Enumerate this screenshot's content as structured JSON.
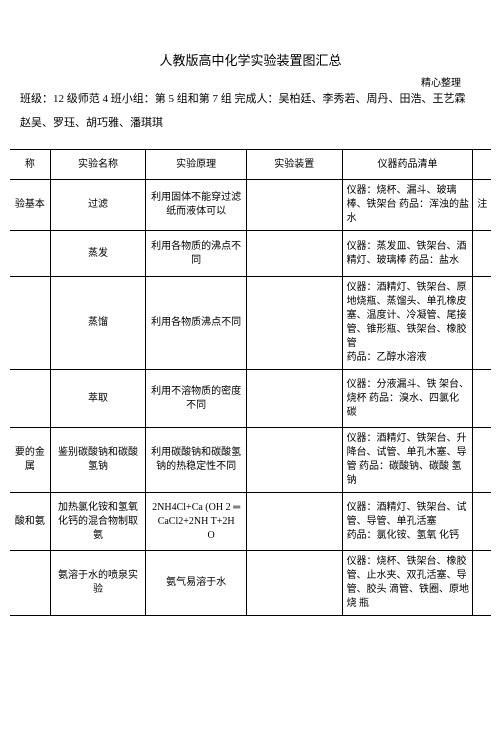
{
  "header_right": "精心整理",
  "title": "人教版高中化学实验装置图汇总",
  "class_info_line1": "班级：12 级师范 4 班小组：第 5 组和第 7 组 完成人：吴柏廷、李秀若、周丹、田浩、王艺霖",
  "class_info_line2": "赵吴、罗珏、胡巧雅、潘琪琪",
  "headers": {
    "col0": "称",
    "col1": "实验名称",
    "col2": "实验原理",
    "col3": "实验装置",
    "col4": "仪器药品清单",
    "col5": ""
  },
  "rows": [
    {
      "cat": "验基本",
      "name": "过滤",
      "principle": "利用固体不能穿过滤纸而液体可以",
      "apparatus": "",
      "list": "仪器：烧杯、漏斗、玻璃棒、铁架台 药品：浑浊的盐水",
      "note": "注",
      "row_h": "h-med"
    },
    {
      "cat": "",
      "name": "蒸发",
      "principle": "利用各物质的沸点不同",
      "apparatus": "",
      "list": "仪器：蒸发皿、铁架台、酒精灯、玻璃棒 药品：盐水",
      "note": "",
      "row_h": "h-med"
    },
    {
      "cat": "",
      "name": "蒸馏",
      "principle": "利用各物质沸点不同",
      "apparatus": "",
      "list": "仪器：酒精灯、铁架台、原地烧瓶、蒸馏头、单孔橡皮塞、温度计、冷凝管、尾接管、锥形瓶、铁架台、橡胶管\n药品：乙醇水溶液",
      "note": "",
      "row_h": "h-taller"
    },
    {
      "cat": "",
      "name": "萃取",
      "principle": "利用不溶物质的密度不同",
      "apparatus": "",
      "list": "仪器：分液漏斗、铁 架台、烧杯 药品：溴水、四氯化 碳",
      "note": "",
      "row_h": "h-tall"
    },
    {
      "cat": "要的金属",
      "name": "鉴别碳酸钠和碳酸氢钠",
      "principle": "利用碳酸钠和碳酸氢 钠的热稳定性不同",
      "apparatus": "",
      "list": "仪器：酒精灯、铁架台、升降台、试管、单孔木塞、导管 药品：碳酸钠、碳酸 氢钠",
      "note": "",
      "row_h": "h-tall"
    },
    {
      "cat": "酸和氨",
      "name": "加热氯化铵和氢氧化钙的混合物制取氨",
      "principle": "2NH4Cl+Ca (OH 2 ═ CaCl2+2NH T+2H\n            O",
      "apparatus": "",
      "list": "仪器：酒精灯、铁架台、试管、导管、单孔活塞\n药品：氯化铵、氢氧 化钙",
      "note": "",
      "row_h": "h-tall"
    },
    {
      "cat": "",
      "name": "氨溶于水的喷泉实验",
      "principle": "氨气易溶于水",
      "apparatus": "",
      "list": "仪器：烧杯、铁架台、橡胶管、止水夹、双孔活塞、导管、胶头 滴管、铁圈、原地烧 瓶",
      "note": "",
      "row_h": "h-tall"
    }
  ]
}
